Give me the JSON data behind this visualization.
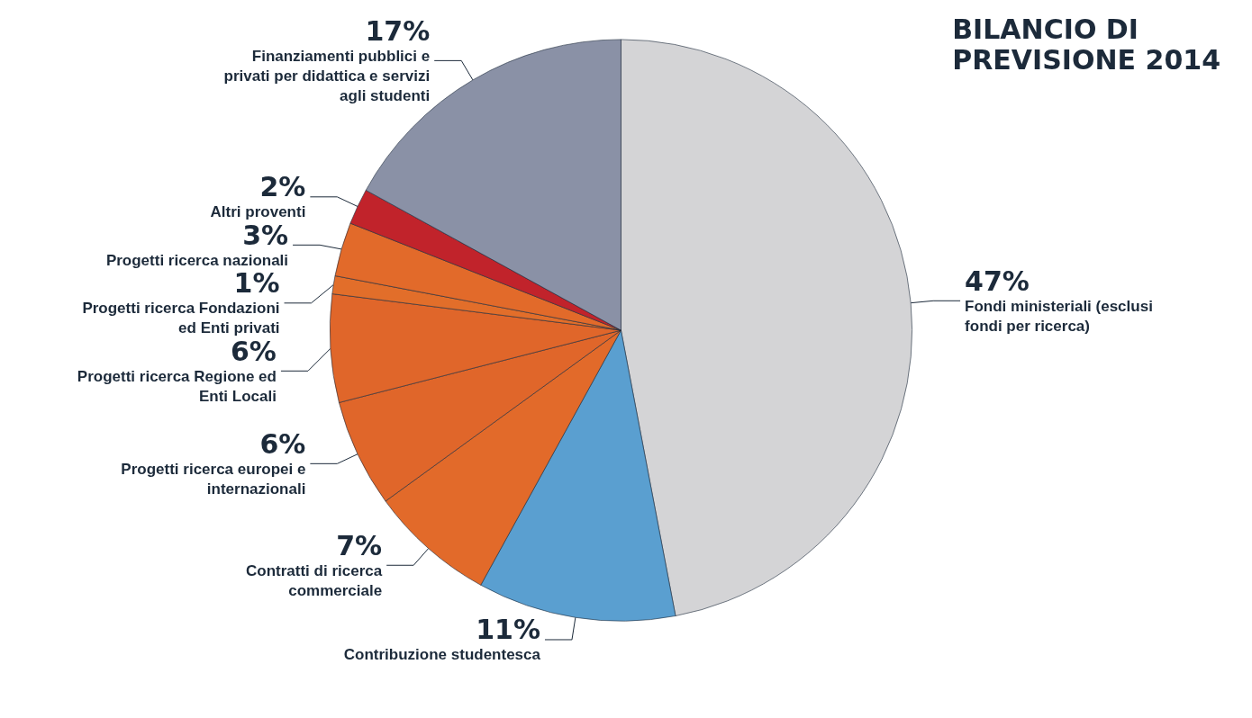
{
  "chart_data": {
    "type": "pie",
    "title": "BILANCIO DI\nPREVISIONE 2014",
    "categories": [
      "Fondi ministeriali (esclusi fondi per ricerca)",
      "Contribuzione studentesca",
      "Contratti di ricerca commerciale",
      "Progetti ricerca europei e internazionali",
      "Progetti ricerca Regione ed Enti Locali",
      "Progetti ricerca Fondazioni ed Enti privati",
      "Progetti ricerca nazionali",
      "Altri proventi",
      "Finanziamenti pubblici e privati per didattica e servizi agli studenti"
    ],
    "values": [
      47,
      11,
      7,
      6,
      6,
      1,
      3,
      2,
      17
    ],
    "value_labels": [
      "47%",
      "11%",
      "7%",
      "6%",
      "6%",
      "1%",
      "3%",
      "2%",
      "17%"
    ],
    "colors": [
      "#d4d4d6",
      "#5a9fd0",
      "#e26a2a",
      "#e0662a",
      "#e0662a",
      "#e26e2a",
      "#e26a2a",
      "#c1232b",
      "#8a91a6"
    ],
    "legend": false
  }
}
